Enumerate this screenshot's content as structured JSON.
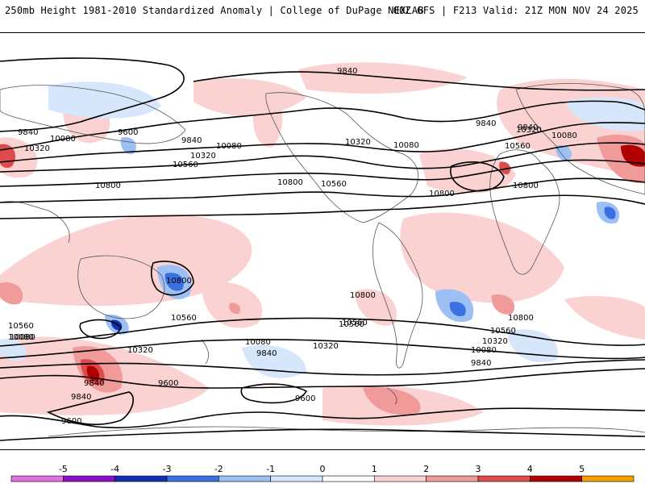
{
  "header": {
    "left": "250mb Height 1981-2010 Standardized Anomaly | College of DuPage NEXLAB",
    "right": "00Z GFS | F213 Valid: 21Z MON NOV 24 2025"
  },
  "contour_labels": [
    {
      "id": "c1",
      "text": "9840"
    },
    {
      "id": "c2",
      "text": "9840"
    },
    {
      "id": "c3",
      "text": "9840"
    },
    {
      "id": "c4",
      "text": "9840"
    },
    {
      "id": "c5",
      "text": "9600"
    },
    {
      "id": "c6",
      "text": "10080"
    },
    {
      "id": "c7",
      "text": "10080"
    },
    {
      "id": "c8",
      "text": "10320"
    },
    {
      "id": "c9",
      "text": "10320"
    },
    {
      "id": "c10",
      "text": "10560"
    },
    {
      "id": "c11",
      "text": "10800"
    },
    {
      "id": "c12",
      "text": "10800"
    },
    {
      "id": "c13",
      "text": "10560"
    },
    {
      "id": "c14",
      "text": "10320"
    },
    {
      "id": "c15",
      "text": "10080"
    },
    {
      "id": "c16",
      "text": "10800"
    },
    {
      "id": "c17",
      "text": "9840"
    },
    {
      "id": "c18",
      "text": "10320"
    },
    {
      "id": "c19",
      "text": "10080"
    },
    {
      "id": "c20",
      "text": "10560"
    },
    {
      "id": "c21",
      "text": "10800"
    },
    {
      "id": "c22",
      "text": "10800"
    },
    {
      "id": "c23",
      "text": "10560"
    },
    {
      "id": "c24",
      "text": "10080"
    },
    {
      "id": "c25",
      "text": "10560"
    },
    {
      "id": "c26",
      "text": "10800"
    },
    {
      "id": "c27",
      "text": "10560"
    },
    {
      "id": "c28",
      "text": "10320"
    },
    {
      "id": "c29",
      "text": "10080"
    },
    {
      "id": "c30",
      "text": "9840"
    },
    {
      "id": "c31",
      "text": "10800"
    },
    {
      "id": "c32",
      "text": "10560"
    },
    {
      "id": "c33",
      "text": "10320"
    },
    {
      "id": "c34",
      "text": "10080"
    },
    {
      "id": "c35",
      "text": "9840"
    },
    {
      "id": "c36",
      "text": "10320"
    },
    {
      "id": "c37",
      "text": "10080"
    },
    {
      "id": "c38",
      "text": "9840"
    },
    {
      "id": "c39",
      "text": "9600"
    },
    {
      "id": "c40",
      "text": "9600"
    },
    {
      "id": "c41",
      "text": "9840"
    },
    {
      "id": "c42",
      "text": "9600"
    },
    {
      "id": "c43",
      "text": "10560"
    }
  ],
  "colorbar": {
    "ticks": [
      "-5",
      "-4",
      "-3",
      "-2",
      "-1",
      "0",
      "1",
      "2",
      "3",
      "4",
      "5"
    ],
    "colors": [
      "#e070e0",
      "#8a10c8",
      "#1030b0",
      "#3a70e0",
      "#9cc0f4",
      "#d6e6fb",
      "#ffffff",
      "#fbd2d2",
      "#f19a9a",
      "#dd4c4c",
      "#b00000",
      "#f5a000"
    ]
  }
}
